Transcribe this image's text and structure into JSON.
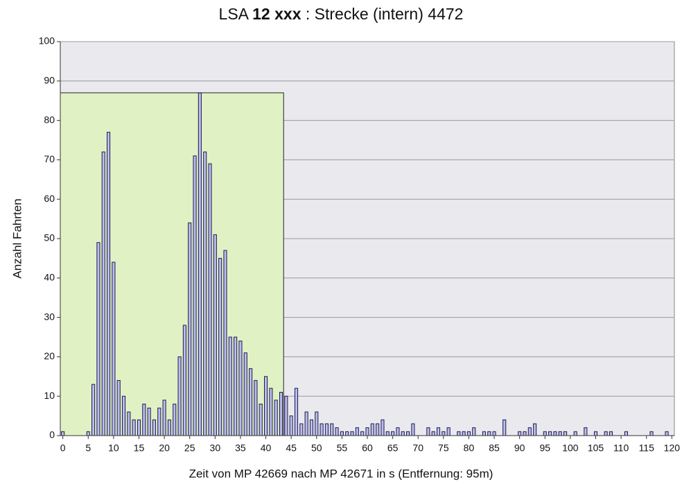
{
  "chart_data": {
    "type": "bar",
    "title": {
      "prefix": "LSA",
      "bold": "12 xxx",
      "suffix": ": Strecke (intern) 4472"
    },
    "xlabel": "Zeit von MP 42669 nach MP 42671 in s (Entfernung: 95m)",
    "ylabel": "Anzahl Fahrten",
    "x": [
      0,
      1,
      2,
      3,
      4,
      5,
      6,
      7,
      8,
      9,
      10,
      11,
      12,
      13,
      14,
      15,
      16,
      17,
      18,
      19,
      20,
      21,
      22,
      23,
      24,
      25,
      26,
      27,
      28,
      29,
      30,
      31,
      32,
      33,
      34,
      35,
      36,
      37,
      38,
      39,
      40,
      41,
      42,
      43,
      44,
      45,
      46,
      47,
      48,
      49,
      50,
      51,
      52,
      53,
      54,
      55,
      56,
      57,
      58,
      59,
      60,
      61,
      62,
      63,
      64,
      65,
      66,
      67,
      68,
      69,
      70,
      71,
      72,
      73,
      74,
      75,
      76,
      77,
      78,
      79,
      80,
      81,
      82,
      83,
      84,
      85,
      86,
      87,
      88,
      89,
      90,
      91,
      92,
      93,
      94,
      95,
      96,
      97,
      98,
      99,
      100,
      101,
      102,
      103,
      104,
      105,
      106,
      107,
      108,
      109,
      110,
      111,
      112,
      113,
      114,
      115,
      116,
      117,
      118,
      119,
      120
    ],
    "values": [
      1,
      0,
      0,
      0,
      0,
      1,
      13,
      49,
      72,
      77,
      44,
      14,
      10,
      6,
      4,
      4,
      8,
      7,
      4,
      7,
      9,
      4,
      8,
      20,
      28,
      54,
      71,
      87,
      72,
      69,
      51,
      45,
      47,
      25,
      25,
      24,
      21,
      17,
      14,
      8,
      15,
      12,
      9,
      11,
      10,
      5,
      12,
      3,
      6,
      4,
      6,
      3,
      3,
      3,
      2,
      1,
      1,
      1,
      2,
      1,
      2,
      3,
      3,
      4,
      1,
      1,
      2,
      1,
      1,
      3,
      0,
      0,
      2,
      1,
      2,
      1,
      2,
      0,
      1,
      1,
      1,
      2,
      0,
      1,
      1,
      1,
      0,
      4,
      0,
      0,
      1,
      1,
      2,
      3,
      0,
      1,
      1,
      1,
      1,
      1,
      0,
      1,
      0,
      2,
      0,
      1,
      0,
      1,
      1,
      0,
      0,
      1,
      0,
      0,
      0,
      0,
      1,
      0,
      0,
      1,
      0
    ],
    "color": "#bcbcec",
    "edge_color": "#1a1a4e",
    "highlight": {
      "x": [
        -0.5,
        43.5
      ],
      "y": 87,
      "color": "#e0f2c4"
    },
    "xlim": [
      -0.5,
      120.5
    ],
    "xticks": [
      0,
      5,
      10,
      15,
      20,
      25,
      30,
      35,
      40,
      45,
      50,
      55,
      60,
      65,
      70,
      75,
      80,
      85,
      90,
      95,
      100,
      105,
      110,
      115,
      120
    ],
    "ylim": [
      0,
      100
    ],
    "yticks": [
      0,
      10,
      20,
      30,
      40,
      50,
      60,
      70,
      80,
      90,
      100
    ],
    "grid": true,
    "background": "#e9e9ee"
  }
}
